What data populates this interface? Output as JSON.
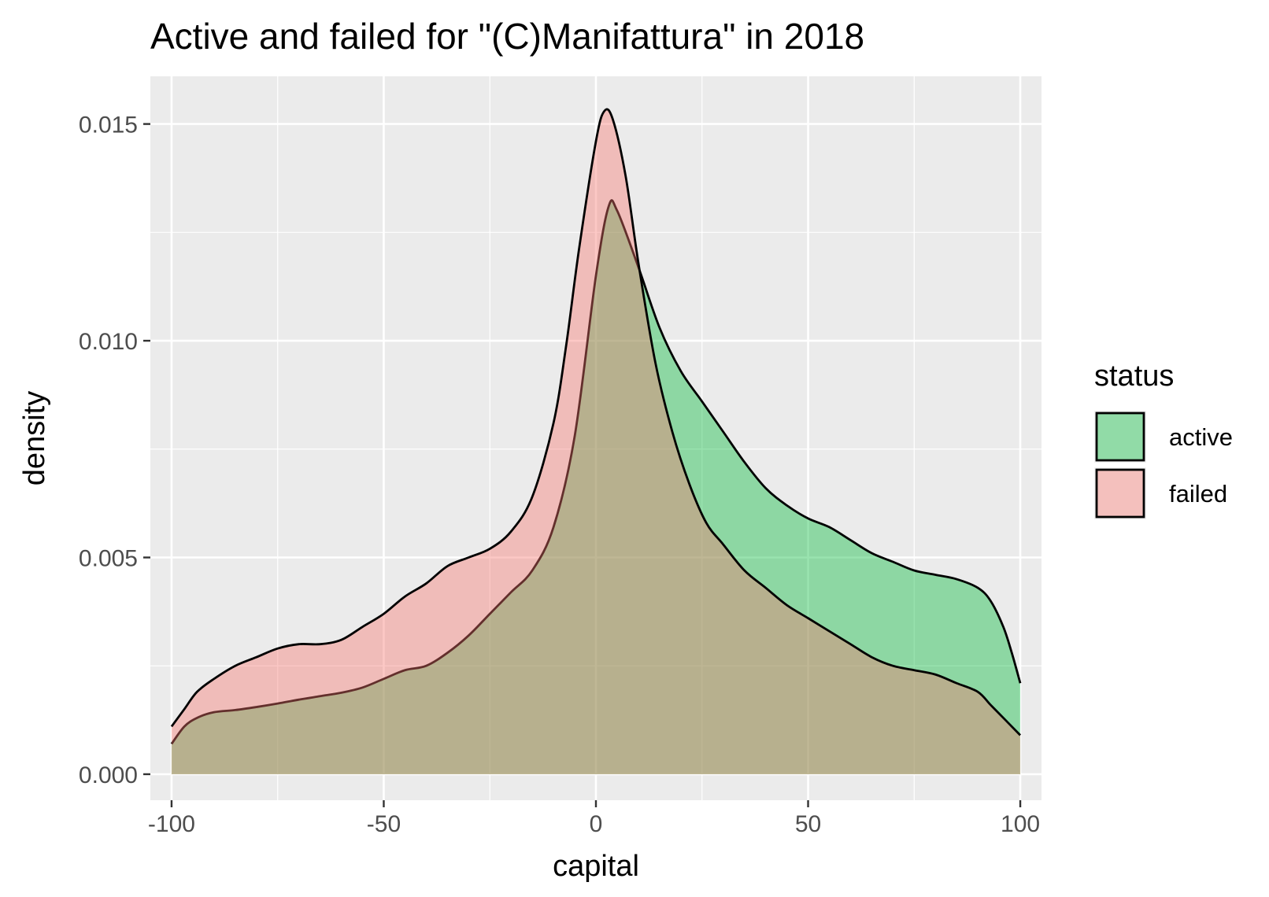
{
  "chart_data": {
    "type": "area",
    "subtype": "density",
    "title": "Active and failed for \"(C)Manifattura\" in 2018",
    "xlabel": "capital",
    "ylabel": "density",
    "xlim": [
      -105,
      105
    ],
    "ylim": [
      -0.0006,
      0.0161
    ],
    "x_ticks": [
      -100,
      -50,
      0,
      50,
      100
    ],
    "x_tick_labels": [
      "-100",
      "-50",
      "0",
      "50",
      "100"
    ],
    "y_ticks": [
      0.0,
      0.005,
      0.01,
      0.015
    ],
    "y_tick_labels": [
      "0.000",
      "0.005",
      "0.010",
      "0.015"
    ],
    "grid": true,
    "legend": {
      "title": "status",
      "position": "right"
    },
    "series": [
      {
        "name": "active",
        "color": "#00BA38",
        "fill": "#90DBA6",
        "x": [
          -100,
          -97,
          -94,
          -90,
          -85,
          -80,
          -75,
          -70,
          -65,
          -60,
          -55,
          -50,
          -45,
          -40,
          -35,
          -30,
          -25,
          -20,
          -15,
          -10,
          -5,
          0,
          3,
          5,
          10,
          15,
          20,
          25,
          30,
          35,
          40,
          45,
          50,
          55,
          60,
          65,
          70,
          75,
          80,
          85,
          90,
          93,
          96,
          98,
          100
        ],
        "values": [
          0.0007,
          0.0011,
          0.0013,
          0.00143,
          0.00148,
          0.00155,
          0.00163,
          0.00172,
          0.0018,
          0.00188,
          0.002,
          0.0022,
          0.0024,
          0.0025,
          0.0028,
          0.0032,
          0.0037,
          0.0042,
          0.0047,
          0.0057,
          0.0078,
          0.0115,
          0.0131,
          0.013,
          0.0117,
          0.0103,
          0.0093,
          0.0086,
          0.0079,
          0.0072,
          0.0066,
          0.0062,
          0.0059,
          0.0057,
          0.0054,
          0.0051,
          0.0049,
          0.0047,
          0.0046,
          0.0045,
          0.0043,
          0.004,
          0.0034,
          0.0028,
          0.0021
        ]
      },
      {
        "name": "failed",
        "color": "#F8766D",
        "fill": "#F4BFBB",
        "x": [
          -100,
          -97,
          -94,
          -90,
          -85,
          -80,
          -75,
          -70,
          -65,
          -60,
          -55,
          -50,
          -45,
          -40,
          -35,
          -30,
          -25,
          -20,
          -15,
          -10,
          -7,
          -4,
          0,
          2,
          4,
          7,
          10,
          14,
          18,
          22,
          26,
          30,
          35,
          40,
          45,
          50,
          55,
          60,
          65,
          70,
          75,
          80,
          85,
          90,
          93,
          96,
          100
        ],
        "values": [
          0.0011,
          0.0015,
          0.0019,
          0.0022,
          0.0025,
          0.0027,
          0.0029,
          0.003,
          0.003,
          0.0031,
          0.0034,
          0.0037,
          0.0041,
          0.0044,
          0.0048,
          0.005,
          0.0052,
          0.0056,
          0.0064,
          0.0081,
          0.0099,
          0.0121,
          0.0146,
          0.0153,
          0.0151,
          0.0138,
          0.0118,
          0.0095,
          0.0079,
          0.0067,
          0.0058,
          0.0053,
          0.0047,
          0.0043,
          0.0039,
          0.0036,
          0.0033,
          0.003,
          0.0027,
          0.0025,
          0.0024,
          0.0023,
          0.0021,
          0.0019,
          0.0016,
          0.0013,
          0.0009
        ]
      }
    ]
  }
}
